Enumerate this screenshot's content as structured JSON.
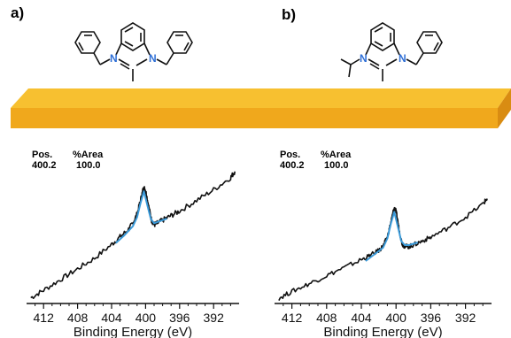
{
  "figure": {
    "panels": [
      {
        "id": "a",
        "label": "a)"
      },
      {
        "id": "b",
        "label": "b)"
      }
    ],
    "atom_label": "N",
    "colors": {
      "slab_top": "#f7c030",
      "slab_front": "#f0a81c",
      "slab_side": "#d98c12",
      "spectrum": "#111111",
      "fit": "#3a9ad9",
      "nitrogen": "#2f6fd6"
    }
  },
  "chart_data": [
    {
      "type": "line",
      "panel": "a",
      "title": "",
      "xlabel": "Binding Energy (eV)",
      "ylabel": "",
      "xlim": [
        414,
        389
      ],
      "x_reversed": true,
      "xticks": [
        412,
        408,
        404,
        400,
        396,
        392
      ],
      "grid": false,
      "table": {
        "headers": [
          "Pos.",
          "%Area"
        ],
        "rows": [
          [
            "400.2",
            "100.0"
          ]
        ]
      },
      "series": [
        {
          "role": "spectrum",
          "x": [
            413.5,
            412,
            410,
            408,
            406,
            404,
            403,
            402,
            401.5,
            401,
            400.6,
            400.3,
            400.1,
            399.9,
            399.6,
            399.3,
            399,
            398.6,
            398,
            397,
            396,
            394,
            392,
            390,
            389.5
          ],
          "y": [
            0.02,
            0.07,
            0.14,
            0.21,
            0.28,
            0.37,
            0.42,
            0.47,
            0.51,
            0.57,
            0.66,
            0.73,
            0.74,
            0.7,
            0.61,
            0.53,
            0.5,
            0.51,
            0.53,
            0.56,
            0.59,
            0.66,
            0.73,
            0.81,
            0.85
          ]
        },
        {
          "role": "fit",
          "x": [
            403.5,
            402.5,
            401.5,
            401,
            400.6,
            400.2,
            399.8,
            399.4,
            399,
            398.5,
            398,
            397.5
          ],
          "y": [
            0.38,
            0.43,
            0.49,
            0.55,
            0.64,
            0.72,
            0.63,
            0.54,
            0.51,
            0.52,
            0.53,
            0.54
          ]
        }
      ]
    },
    {
      "type": "line",
      "panel": "b",
      "title": "",
      "xlabel": "Binding Energy (eV)",
      "ylabel": "",
      "xlim": [
        414,
        389
      ],
      "x_reversed": true,
      "xticks": [
        412,
        408,
        404,
        400,
        396,
        392
      ],
      "grid": false,
      "table": {
        "headers": [
          "Pos.",
          "%Area"
        ],
        "rows": [
          [
            "400.2",
            "100.0"
          ]
        ]
      },
      "series": [
        {
          "role": "spectrum",
          "x": [
            413.5,
            412,
            410,
            408,
            406,
            404,
            403,
            402,
            401.5,
            401,
            400.6,
            400.3,
            400.1,
            399.9,
            399.6,
            399.3,
            399,
            398.5,
            398,
            397,
            396,
            394,
            392,
            390,
            389.5
          ],
          "y": [
            0.02,
            0.07,
            0.13,
            0.19,
            0.25,
            0.31,
            0.34,
            0.38,
            0.41,
            0.48,
            0.59,
            0.68,
            0.7,
            0.64,
            0.52,
            0.43,
            0.41,
            0.41,
            0.42,
            0.45,
            0.48,
            0.55,
            0.63,
            0.73,
            0.77
          ]
        },
        {
          "role": "fit",
          "x": [
            403.5,
            402.5,
            401.5,
            401,
            400.6,
            400.2,
            399.8,
            399.4,
            399,
            398.5,
            398,
            397.5
          ],
          "y": [
            0.3,
            0.35,
            0.4,
            0.47,
            0.58,
            0.67,
            0.56,
            0.45,
            0.42,
            0.42,
            0.43,
            0.44
          ]
        }
      ]
    }
  ]
}
